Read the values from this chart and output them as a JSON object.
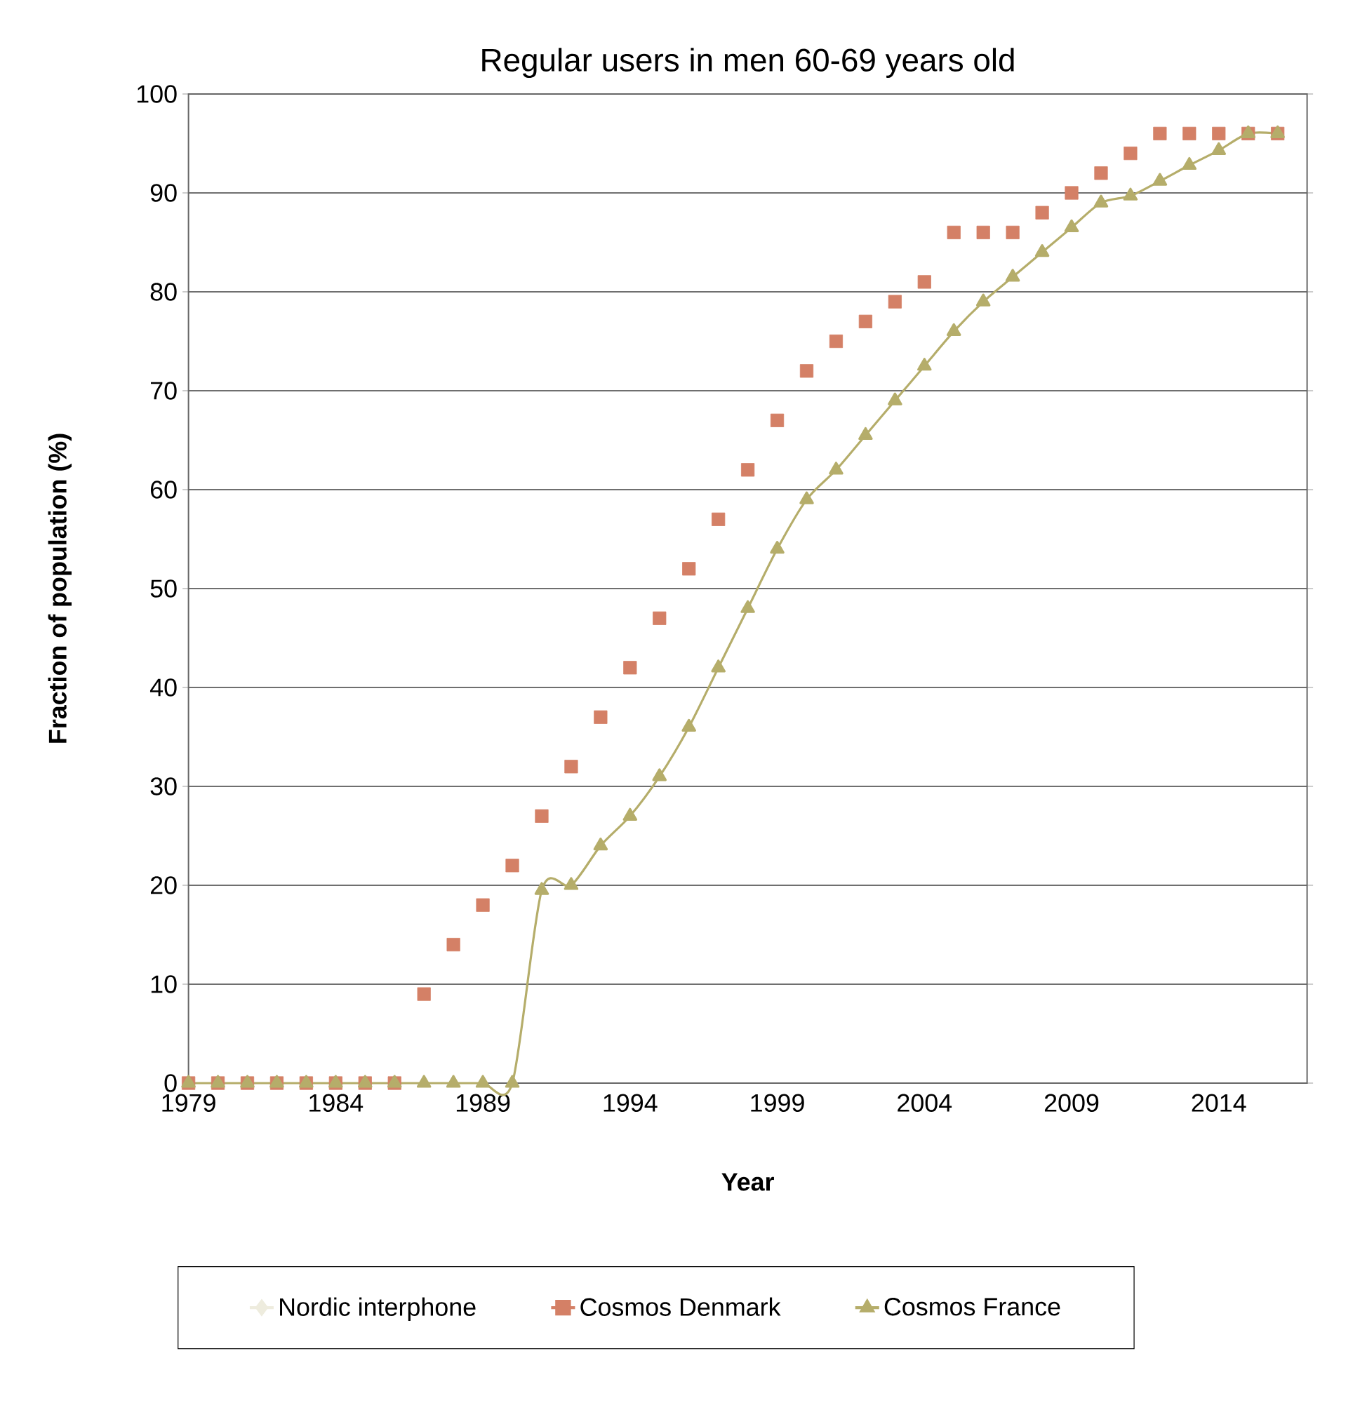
{
  "chart_data": {
    "type": "line",
    "title": "Regular users in men 60-69 years old",
    "xlabel": "Year",
    "ylabel": "Fraction of population (%)",
    "x": [
      1979,
      1980,
      1981,
      1982,
      1983,
      1984,
      1985,
      1986,
      1987,
      1988,
      1989,
      1990,
      1991,
      1992,
      1993,
      1994,
      1995,
      1996,
      1997,
      1998,
      1999,
      2000,
      2001,
      2002,
      2003,
      2004,
      2005,
      2006,
      2007,
      2008,
      2009,
      2010,
      2011,
      2012,
      2013,
      2014,
      2015,
      2016
    ],
    "series": [
      {
        "name": "Nordic interphone",
        "color": "#eeecde",
        "marker": "diamond",
        "values": [
          null,
          null,
          null,
          null,
          null,
          null,
          null,
          null,
          null,
          null,
          null,
          null,
          null,
          null,
          null,
          null,
          null,
          null,
          null,
          null,
          null,
          null,
          null,
          null,
          null,
          null,
          null,
          null,
          null,
          null,
          null,
          null,
          null,
          null,
          null,
          null,
          null,
          null
        ]
      },
      {
        "name": "Cosmos Denmark",
        "color": "#d48066",
        "marker": "square",
        "type": "scatter",
        "values": [
          0,
          0,
          0,
          0,
          0,
          0,
          0,
          0,
          9,
          14,
          18,
          22,
          27,
          32,
          37,
          42,
          47,
          52,
          57,
          62,
          67,
          72,
          75,
          77,
          79,
          81,
          86,
          86,
          86,
          88,
          90,
          92,
          94,
          96,
          96,
          96,
          96,
          96
        ]
      },
      {
        "name": "Cosmos France",
        "color": "#b5ad6a",
        "marker": "triangle",
        "values": [
          0,
          0,
          0,
          0,
          0,
          0,
          0,
          0,
          0,
          0,
          0,
          0,
          19.5,
          20,
          24,
          27,
          31,
          36,
          42,
          48,
          54,
          59,
          62,
          65.5,
          69,
          72.5,
          76,
          79,
          81.5,
          84,
          86.5,
          89,
          89.7,
          91.2,
          92.8,
          94.3,
          96,
          96
        ]
      }
    ],
    "xlim": [
      1979,
      2017
    ],
    "xticks": [
      1979,
      1984,
      1989,
      1994,
      1999,
      2004,
      2009,
      2014
    ],
    "ylim": [
      0,
      100
    ],
    "yticks": [
      0,
      10,
      20,
      30,
      40,
      50,
      60,
      70,
      80,
      90,
      100
    ],
    "grid": "y",
    "legend": "bottom"
  }
}
